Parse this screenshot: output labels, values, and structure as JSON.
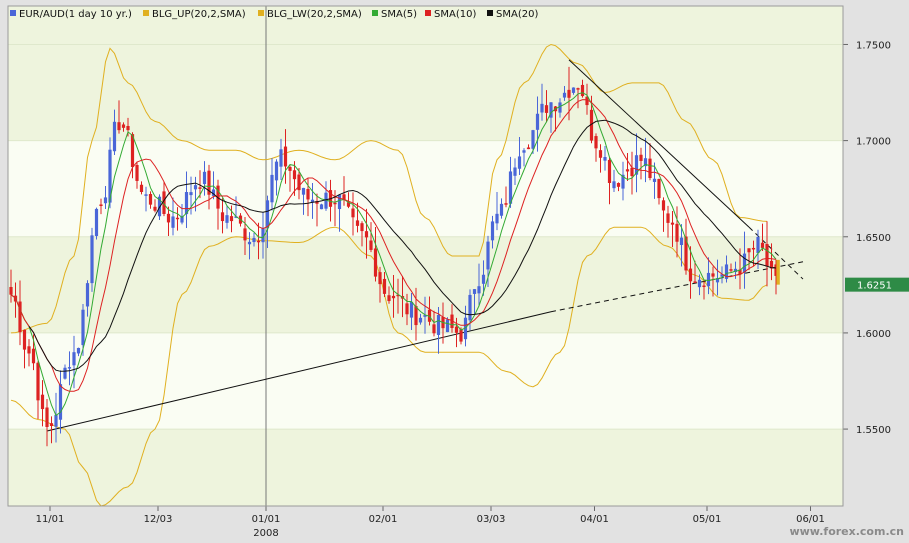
{
  "legend": [
    {
      "label": "EUR/AUD(1 day  10 yr.)",
      "color": "#4a66d8"
    },
    {
      "label": "BLG_UP(20,2,SMA)",
      "color": "#e0b020"
    },
    {
      "label": "BLG_LW(20,2,SMA)",
      "color": "#e0b020"
    },
    {
      "label": "SMA(5)",
      "color": "#33aa33"
    },
    {
      "label": "SMA(10)",
      "color": "#dd2222"
    },
    {
      "label": "SMA(20)",
      "color": "#111111"
    }
  ],
  "last_price_label": "1.6251",
  "watermark": "www.forex.com.cn",
  "colors": {
    "up_candle": "#4a66d8",
    "down_candle": "#dd2222",
    "band": "#e0b020",
    "sma5": "#33aa33",
    "sma10": "#dd2222",
    "sma20": "#111111",
    "last_marker": "#e0b020",
    "price_label_bg": "#2e8b46"
  },
  "chart_data": {
    "type": "candlestick",
    "title": "",
    "x_tick_labels": [
      "11/01",
      "12/03",
      "01/01",
      "02/01",
      "03/03",
      "04/01",
      "05/01",
      "06/01"
    ],
    "year_label": "2008",
    "y_tick_labels": [
      "1.5500",
      "1.6000",
      "1.6500",
      "1.7000",
      "1.7500"
    ],
    "ylim": [
      1.51,
      1.77
    ],
    "grid": true,
    "series_anchors": {
      "close": [
        [
          0,
          1.62
        ],
        [
          4,
          1.59
        ],
        [
          8,
          1.55
        ],
        [
          14,
          1.59
        ],
        [
          20,
          1.67
        ],
        [
          24,
          1.71
        ],
        [
          30,
          1.67
        ],
        [
          36,
          1.66
        ],
        [
          42,
          1.68
        ],
        [
          48,
          1.66
        ],
        [
          54,
          1.65
        ],
        [
          60,
          1.69
        ],
        [
          66,
          1.67
        ],
        [
          72,
          1.67
        ],
        [
          78,
          1.65
        ],
        [
          84,
          1.62
        ],
        [
          90,
          1.61
        ],
        [
          96,
          1.603
        ],
        [
          100,
          1.6
        ],
        [
          104,
          1.63
        ],
        [
          108,
          1.66
        ],
        [
          114,
          1.7
        ],
        [
          120,
          1.72
        ],
        [
          126,
          1.73
        ],
        [
          130,
          1.7
        ],
        [
          134,
          1.68
        ],
        [
          140,
          1.69
        ],
        [
          146,
          1.66
        ],
        [
          152,
          1.63
        ],
        [
          158,
          1.63
        ],
        [
          162,
          1.635
        ],
        [
          166,
          1.645
        ],
        [
          170,
          1.625
        ]
      ],
      "bollinger_upper": [
        [
          0,
          1.6
        ],
        [
          8,
          1.605
        ],
        [
          14,
          1.64
        ],
        [
          18,
          1.7
        ],
        [
          22,
          1.748
        ],
        [
          26,
          1.73
        ],
        [
          32,
          1.71
        ],
        [
          38,
          1.7
        ],
        [
          44,
          1.695
        ],
        [
          50,
          1.695
        ],
        [
          56,
          1.69
        ],
        [
          64,
          1.695
        ],
        [
          72,
          1.69
        ],
        [
          80,
          1.7
        ],
        [
          86,
          1.695
        ],
        [
          92,
          1.66
        ],
        [
          98,
          1.64
        ],
        [
          104,
          1.64
        ],
        [
          108,
          1.69
        ],
        [
          114,
          1.73
        ],
        [
          120,
          1.75
        ],
        [
          126,
          1.74
        ],
        [
          132,
          1.725
        ],
        [
          138,
          1.73
        ],
        [
          144,
          1.73
        ],
        [
          150,
          1.71
        ],
        [
          156,
          1.69
        ],
        [
          162,
          1.66
        ],
        [
          168,
          1.658
        ]
      ],
      "bollinger_lower": [
        [
          0,
          1.565
        ],
        [
          6,
          1.555
        ],
        [
          12,
          1.55
        ],
        [
          16,
          1.53
        ],
        [
          20,
          1.51
        ],
        [
          26,
          1.52
        ],
        [
          32,
          1.55
        ],
        [
          38,
          1.62
        ],
        [
          44,
          1.645
        ],
        [
          50,
          1.65
        ],
        [
          56,
          1.648
        ],
        [
          64,
          1.647
        ],
        [
          72,
          1.655
        ],
        [
          80,
          1.64
        ],
        [
          86,
          1.6
        ],
        [
          92,
          1.59
        ],
        [
          98,
          1.59
        ],
        [
          104,
          1.59
        ],
        [
          110,
          1.58
        ],
        [
          116,
          1.572
        ],
        [
          122,
          1.59
        ],
        [
          128,
          1.64
        ],
        [
          134,
          1.655
        ],
        [
          140,
          1.655
        ],
        [
          146,
          1.645
        ],
        [
          152,
          1.63
        ],
        [
          158,
          1.618
        ],
        [
          164,
          1.617
        ],
        [
          168,
          1.625
        ]
      ],
      "trendlines": [
        {
          "style": "solid",
          "from": [
            8,
            1.549
          ],
          "to": [
            120,
            1.611
          ]
        },
        {
          "style": "dashed",
          "from": [
            120,
            1.611
          ],
          "to": [
            176,
            1.637
          ]
        },
        {
          "style": "solid",
          "from": [
            124,
            1.742
          ],
          "to": [
            164,
            1.655
          ]
        },
        {
          "style": "dashed",
          "from": [
            164,
            1.655
          ],
          "to": [
            176,
            1.628
          ]
        }
      ]
    }
  }
}
